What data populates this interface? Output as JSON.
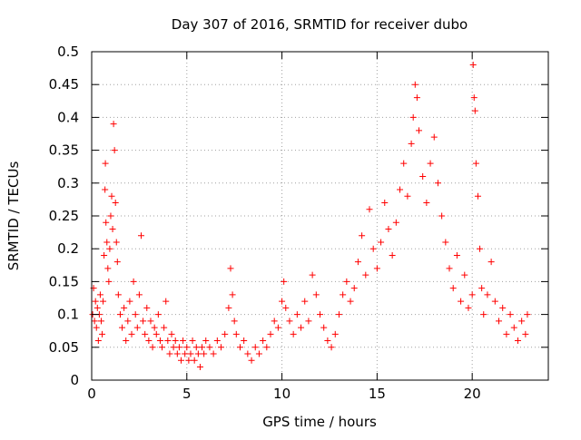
{
  "chart_data": {
    "type": "scatter",
    "title": "Day 307 of 2016, SRMTID for receiver dubo",
    "xlabel": "GPS time / hours",
    "ylabel": "SRMTID / TECUs",
    "xlim": [
      0,
      24
    ],
    "ylim": [
      0,
      0.5
    ],
    "x_ticks": [
      0,
      5,
      10,
      15,
      20
    ],
    "x_tick_labels": [
      "0",
      "5",
      "10",
      "15",
      "20"
    ],
    "y_ticks": [
      0,
      0.05,
      0.1,
      0.15,
      0.2,
      0.25,
      0.3,
      0.35,
      0.4,
      0.45,
      0.5
    ],
    "y_tick_labels": [
      "0",
      "0.05",
      "0.1",
      "0.15",
      "0.2",
      "0.25",
      "0.3",
      "0.35",
      "0.4",
      "0.45",
      "0.5"
    ],
    "grid": true,
    "marker": "+",
    "marker_color": "#ff0000",
    "series": [
      {
        "name": "SRMTID",
        "points": [
          [
            0.05,
            0.1
          ],
          [
            0.1,
            0.14
          ],
          [
            0.15,
            0.09
          ],
          [
            0.2,
            0.12
          ],
          [
            0.25,
            0.08
          ],
          [
            0.3,
            0.11
          ],
          [
            0.35,
            0.06
          ],
          [
            0.4,
            0.1
          ],
          [
            0.45,
            0.13
          ],
          [
            0.5,
            0.09
          ],
          [
            0.55,
            0.07
          ],
          [
            0.6,
            0.12
          ],
          [
            0.65,
            0.19
          ],
          [
            0.7,
            0.29
          ],
          [
            0.72,
            0.33
          ],
          [
            0.75,
            0.24
          ],
          [
            0.8,
            0.21
          ],
          [
            0.85,
            0.17
          ],
          [
            0.9,
            0.15
          ],
          [
            0.95,
            0.2
          ],
          [
            1.0,
            0.25
          ],
          [
            1.05,
            0.28
          ],
          [
            1.1,
            0.23
          ],
          [
            1.15,
            0.39
          ],
          [
            1.2,
            0.35
          ],
          [
            1.25,
            0.27
          ],
          [
            1.3,
            0.21
          ],
          [
            1.35,
            0.18
          ],
          [
            1.4,
            0.13
          ],
          [
            1.5,
            0.1
          ],
          [
            1.6,
            0.08
          ],
          [
            1.7,
            0.11
          ],
          [
            1.8,
            0.06
          ],
          [
            1.9,
            0.09
          ],
          [
            2.0,
            0.12
          ],
          [
            2.1,
            0.07
          ],
          [
            2.2,
            0.15
          ],
          [
            2.3,
            0.1
          ],
          [
            2.4,
            0.08
          ],
          [
            2.5,
            0.13
          ],
          [
            2.6,
            0.22
          ],
          [
            2.7,
            0.09
          ],
          [
            2.8,
            0.07
          ],
          [
            2.9,
            0.11
          ],
          [
            3.0,
            0.06
          ],
          [
            3.1,
            0.09
          ],
          [
            3.2,
            0.05
          ],
          [
            3.3,
            0.08
          ],
          [
            3.4,
            0.07
          ],
          [
            3.5,
            0.1
          ],
          [
            3.6,
            0.06
          ],
          [
            3.7,
            0.05
          ],
          [
            3.8,
            0.08
          ],
          [
            3.9,
            0.12
          ],
          [
            4.0,
            0.06
          ],
          [
            4.1,
            0.04
          ],
          [
            4.2,
            0.07
          ],
          [
            4.3,
            0.05
          ],
          [
            4.4,
            0.06
          ],
          [
            4.5,
            0.04
          ],
          [
            4.6,
            0.05
          ],
          [
            4.7,
            0.03
          ],
          [
            4.8,
            0.06
          ],
          [
            4.9,
            0.04
          ],
          [
            5.0,
            0.05
          ],
          [
            5.1,
            0.03
          ],
          [
            5.2,
            0.04
          ],
          [
            5.3,
            0.06
          ],
          [
            5.4,
            0.03
          ],
          [
            5.5,
            0.05
          ],
          [
            5.6,
            0.04
          ],
          [
            5.7,
            0.02
          ],
          [
            5.8,
            0.05
          ],
          [
            5.9,
            0.04
          ],
          [
            6.0,
            0.06
          ],
          [
            6.2,
            0.05
          ],
          [
            6.4,
            0.04
          ],
          [
            6.6,
            0.06
          ],
          [
            6.8,
            0.05
          ],
          [
            7.0,
            0.07
          ],
          [
            7.2,
            0.11
          ],
          [
            7.3,
            0.17
          ],
          [
            7.4,
            0.13
          ],
          [
            7.5,
            0.09
          ],
          [
            7.6,
            0.07
          ],
          [
            7.8,
            0.05
          ],
          [
            8.0,
            0.06
          ],
          [
            8.2,
            0.04
          ],
          [
            8.4,
            0.03
          ],
          [
            8.6,
            0.05
          ],
          [
            8.8,
            0.04
          ],
          [
            9.0,
            0.06
          ],
          [
            9.2,
            0.05
          ],
          [
            9.4,
            0.07
          ],
          [
            9.6,
            0.09
          ],
          [
            9.8,
            0.08
          ],
          [
            10.0,
            0.12
          ],
          [
            10.1,
            0.15
          ],
          [
            10.2,
            0.11
          ],
          [
            10.4,
            0.09
          ],
          [
            10.6,
            0.07
          ],
          [
            10.8,
            0.1
          ],
          [
            11.0,
            0.08
          ],
          [
            11.2,
            0.12
          ],
          [
            11.4,
            0.09
          ],
          [
            11.6,
            0.16
          ],
          [
            11.8,
            0.13
          ],
          [
            12.0,
            0.1
          ],
          [
            12.2,
            0.08
          ],
          [
            12.4,
            0.06
          ],
          [
            12.6,
            0.05
          ],
          [
            12.8,
            0.07
          ],
          [
            13.0,
            0.1
          ],
          [
            13.2,
            0.13
          ],
          [
            13.4,
            0.15
          ],
          [
            13.6,
            0.12
          ],
          [
            13.8,
            0.14
          ],
          [
            14.0,
            0.18
          ],
          [
            14.2,
            0.22
          ],
          [
            14.4,
            0.16
          ],
          [
            14.6,
            0.26
          ],
          [
            14.8,
            0.2
          ],
          [
            15.0,
            0.17
          ],
          [
            15.2,
            0.21
          ],
          [
            15.4,
            0.27
          ],
          [
            15.6,
            0.23
          ],
          [
            15.8,
            0.19
          ],
          [
            16.0,
            0.24
          ],
          [
            16.2,
            0.29
          ],
          [
            16.4,
            0.33
          ],
          [
            16.6,
            0.28
          ],
          [
            16.8,
            0.36
          ],
          [
            16.9,
            0.4
          ],
          [
            17.0,
            0.45
          ],
          [
            17.1,
            0.43
          ],
          [
            17.2,
            0.38
          ],
          [
            17.4,
            0.31
          ],
          [
            17.6,
            0.27
          ],
          [
            17.8,
            0.33
          ],
          [
            18.0,
            0.37
          ],
          [
            18.2,
            0.3
          ],
          [
            18.4,
            0.25
          ],
          [
            18.6,
            0.21
          ],
          [
            18.8,
            0.17
          ],
          [
            19.0,
            0.14
          ],
          [
            19.2,
            0.19
          ],
          [
            19.4,
            0.12
          ],
          [
            19.6,
            0.16
          ],
          [
            19.8,
            0.11
          ],
          [
            20.0,
            0.13
          ],
          [
            20.05,
            0.48
          ],
          [
            20.1,
            0.43
          ],
          [
            20.15,
            0.41
          ],
          [
            20.2,
            0.33
          ],
          [
            20.3,
            0.28
          ],
          [
            20.4,
            0.2
          ],
          [
            20.5,
            0.14
          ],
          [
            20.6,
            0.1
          ],
          [
            20.8,
            0.13
          ],
          [
            21.0,
            0.18
          ],
          [
            21.2,
            0.12
          ],
          [
            21.4,
            0.09
          ],
          [
            21.6,
            0.11
          ],
          [
            21.8,
            0.07
          ],
          [
            22.0,
            0.1
          ],
          [
            22.2,
            0.08
          ],
          [
            22.4,
            0.06
          ],
          [
            22.6,
            0.09
          ],
          [
            22.8,
            0.07
          ],
          [
            22.9,
            0.1
          ]
        ]
      }
    ]
  }
}
